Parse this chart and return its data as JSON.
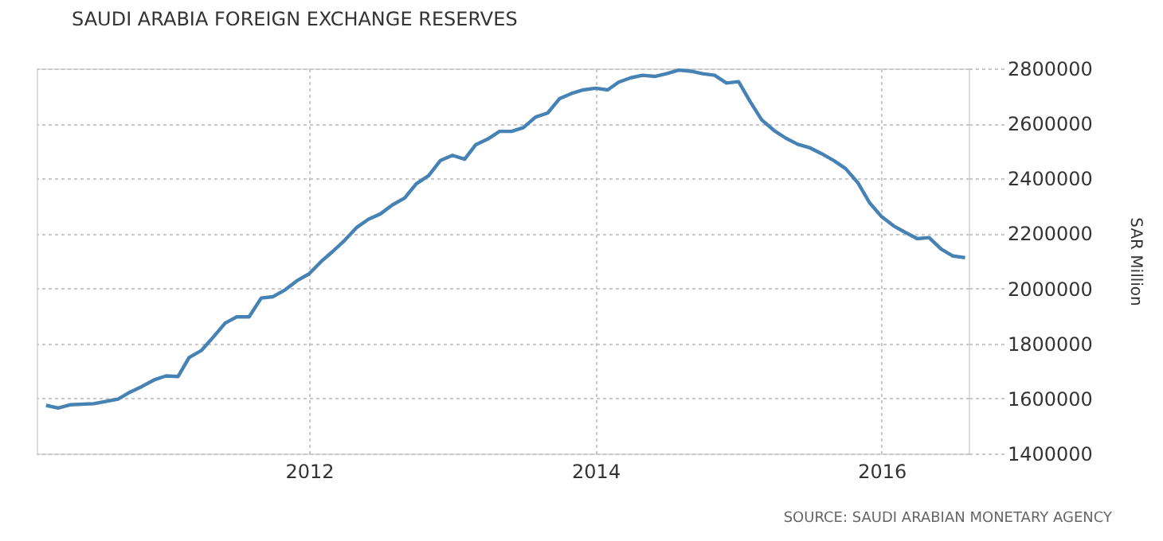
{
  "chart_data": {
    "type": "line",
    "title": "SAUDI ARABIA FOREIGN EXCHANGE RESERVES",
    "ylabel": "SAR Million",
    "annotations": [
      "SOURCE: SAUDI ARABIAN MONETARY AGENCY"
    ],
    "x": [
      "2010-03",
      "2010-04",
      "2010-05",
      "2010-07",
      "2010-09",
      "2010-10",
      "2010-11",
      "2010-12",
      "2011-01",
      "2011-02",
      "2011-03",
      "2011-04",
      "2011-05",
      "2011-06",
      "2011-07",
      "2011-08",
      "2011-09",
      "2011-10",
      "2011-11",
      "2011-12",
      "2012-01",
      "2012-02",
      "2012-03",
      "2012-04",
      "2012-05",
      "2012-06",
      "2012-07",
      "2012-08",
      "2012-09",
      "2012-10",
      "2012-11",
      "2012-12",
      "2013-01",
      "2013-02",
      "2013-03",
      "2013-04",
      "2013-05",
      "2013-06",
      "2013-07",
      "2013-08",
      "2013-09",
      "2013-10",
      "2013-11",
      "2013-12",
      "2014-01",
      "2014-02",
      "2014-03",
      "2014-04",
      "2014-05",
      "2014-06",
      "2014-07",
      "2014-08",
      "2014-09",
      "2014-10",
      "2014-11",
      "2014-12",
      "2015-01",
      "2015-02",
      "2015-03",
      "2015-04",
      "2015-05",
      "2015-06",
      "2015-07",
      "2015-08",
      "2015-09",
      "2015-10",
      "2015-11",
      "2015-12",
      "2016-01",
      "2016-02",
      "2016-03",
      "2016-04",
      "2016-05",
      "2016-06",
      "2016-07",
      "2016-08"
    ],
    "series": [
      {
        "color": "#4682b4",
        "values": [
          1575000,
          1565000,
          1577000,
          1581000,
          1598000,
          1623000,
          1644000,
          1667000,
          1682000,
          1680000,
          1749000,
          1774000,
          1822000,
          1874000,
          1897000,
          1897000,
          1965000,
          1970000,
          1995000,
          2028000,
          2053000,
          2098000,
          2134000,
          2175000,
          2221000,
          2252000,
          2271000,
          2304000,
          2329000,
          2381000,
          2410000,
          2465000,
          2484000,
          2470000,
          2522000,
          2543000,
          2571000,
          2571000,
          2585000,
          2623000,
          2638000,
          2690000,
          2709000,
          2722000,
          2728000,
          2722000,
          2750000,
          2766000,
          2775000,
          2771000,
          2781000,
          2794000,
          2790000,
          2781000,
          2775000,
          2747000,
          2752000,
          2676000,
          2613000,
          2575000,
          2547000,
          2524000,
          2512000,
          2490000,
          2465000,
          2436000,
          2385000,
          2312000,
          2261000,
          2227000,
          2204000,
          2181000,
          2185000,
          2143000,
          2118000,
          2112000
        ]
      }
    ],
    "xlim": [
      "2010-02-05",
      "2016-08-10"
    ],
    "xticks": [
      "2012",
      "2014",
      "2016"
    ],
    "ylim": [
      1400000,
      2800000
    ],
    "yticks": [
      1400000,
      1600000,
      1800000,
      2000000,
      2200000,
      2400000,
      2600000,
      2800000
    ],
    "grid": true,
    "legend": false,
    "marker": "none",
    "line_style": "solid"
  }
}
